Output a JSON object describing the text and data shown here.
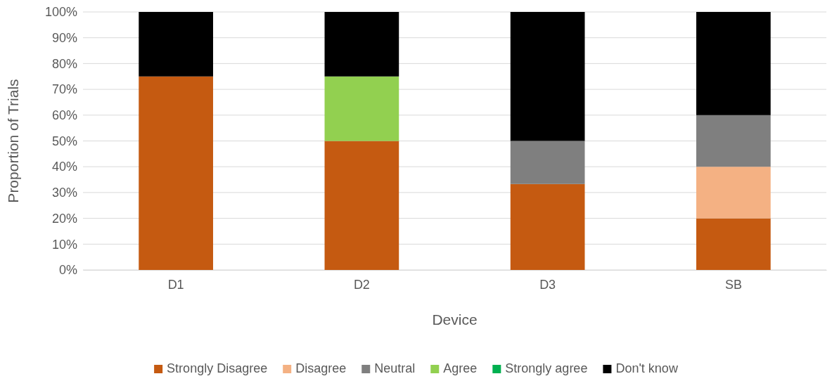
{
  "chart_data": {
    "type": "bar",
    "stacked": true,
    "xlabel": "Device",
    "ylabel": "Proportion of Trials",
    "categories": [
      "D1",
      "D2",
      "D3",
      "SB"
    ],
    "series": [
      {
        "name": "Strongly Disagree",
        "color": "#c55a11",
        "values": [
          75,
          50,
          33.3,
          20
        ]
      },
      {
        "name": "Disagree",
        "color": "#f4b183",
        "values": [
          0,
          0,
          0,
          20
        ]
      },
      {
        "name": "Neutral",
        "color": "#7f7f7f",
        "values": [
          0,
          0,
          16.7,
          20
        ]
      },
      {
        "name": "Agree",
        "color": "#92d050",
        "values": [
          0,
          25,
          0,
          0
        ]
      },
      {
        "name": "Strongly agree",
        "color": "#00b050",
        "values": [
          0,
          0,
          0,
          0
        ]
      },
      {
        "name": "Don't know",
        "color": "#000000",
        "values": [
          25,
          25,
          50,
          40
        ]
      }
    ],
    "ylim": [
      0,
      100
    ],
    "yticks": [
      {
        "value": 0,
        "label": "0%"
      },
      {
        "value": 10,
        "label": "10%"
      },
      {
        "value": 20,
        "label": "20%"
      },
      {
        "value": 30,
        "label": "30%"
      },
      {
        "value": 40,
        "label": "40%"
      },
      {
        "value": 50,
        "label": "50%"
      },
      {
        "value": 60,
        "label": "60%"
      },
      {
        "value": 70,
        "label": "70%"
      },
      {
        "value": 80,
        "label": "80%"
      },
      {
        "value": 90,
        "label": "90%"
      },
      {
        "value": 100,
        "label": "100%"
      }
    ],
    "grid": "y",
    "legend": "bottom"
  }
}
